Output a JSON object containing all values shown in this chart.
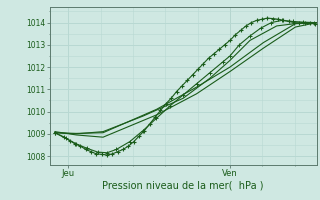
{
  "bg_color": "#cfe8e2",
  "grid_color": "#b8d8d2",
  "line_color": "#1a5c1a",
  "marker_color": "#1a5c1a",
  "axis_color": "#5c7a6e",
  "text_color": "#1a5c1a",
  "xlabel": "Pression niveau de la mer(  hPa )",
  "yticks": [
    1008,
    1009,
    1010,
    1011,
    1012,
    1013,
    1014
  ],
  "xtick_labels": [
    "Jeu",
    "Ven"
  ],
  "xtick_positions": [
    0.07,
    0.675
  ],
  "vline_x": 0.675,
  "xlim": [
    0.0,
    1.0
  ],
  "ylim": [
    1007.6,
    1014.7
  ],
  "series": [
    [
      0.02,
      1009.05,
      0.055,
      1008.85,
      0.075,
      1008.7,
      0.095,
      1008.55,
      0.115,
      1008.45,
      0.135,
      1008.3,
      0.155,
      1008.2,
      0.175,
      1008.1,
      0.195,
      1008.08,
      0.215,
      1008.05,
      0.235,
      1008.1,
      0.255,
      1008.2,
      0.275,
      1008.3,
      0.295,
      1008.45,
      0.315,
      1008.65,
      0.335,
      1008.9,
      0.355,
      1009.15,
      0.375,
      1009.45,
      0.395,
      1009.75,
      0.415,
      1010.05,
      0.435,
      1010.35,
      0.455,
      1010.6,
      0.475,
      1010.9,
      0.495,
      1011.15,
      0.515,
      1011.4,
      0.535,
      1011.65,
      0.555,
      1011.9,
      0.575,
      1012.15,
      0.595,
      1012.4,
      0.615,
      1012.6,
      0.635,
      1012.8,
      0.655,
      1013.0,
      0.675,
      1013.2,
      0.695,
      1013.45,
      0.715,
      1013.65,
      0.735,
      1013.85,
      0.755,
      1014.0,
      0.775,
      1014.1,
      0.795,
      1014.15,
      0.815,
      1014.2,
      0.835,
      1014.18,
      0.855,
      1014.15,
      0.875,
      1014.1,
      0.895,
      1014.05,
      0.915,
      1014.0,
      0.935,
      1013.98,
      0.955,
      1013.97,
      0.975,
      1013.96,
      0.995,
      1013.95
    ],
    [
      0.02,
      1009.05,
      0.06,
      1008.8,
      0.1,
      1008.55,
      0.14,
      1008.35,
      0.18,
      1008.18,
      0.215,
      1008.15,
      0.25,
      1008.3,
      0.3,
      1008.65,
      0.35,
      1009.15,
      0.4,
      1009.7,
      0.45,
      1010.25,
      0.5,
      1010.75,
      0.55,
      1011.25,
      0.6,
      1011.75,
      0.65,
      1012.25,
      0.675,
      1012.5,
      0.71,
      1013.0,
      0.75,
      1013.4,
      0.79,
      1013.75,
      0.83,
      1014.0,
      0.87,
      1014.1,
      0.91,
      1014.05,
      0.95,
      1014.02,
      0.99,
      1014.0
    ],
    [
      0.02,
      1009.05,
      0.1,
      1009.0,
      0.2,
      1009.1,
      0.35,
      1009.8,
      0.5,
      1010.6,
      0.6,
      1011.5,
      0.675,
      1012.3,
      0.75,
      1013.2,
      0.85,
      1013.85,
      0.95,
      1014.0,
      1.0,
      1014.0
    ],
    [
      0.02,
      1009.05,
      0.1,
      1009.02,
      0.2,
      1009.05,
      0.4,
      1010.1,
      0.55,
      1011.1,
      0.675,
      1012.0,
      0.8,
      1013.1,
      0.92,
      1013.95,
      1.0,
      1014.0
    ],
    [
      0.02,
      1009.1,
      0.1,
      1008.95,
      0.2,
      1008.85,
      0.4,
      1009.85,
      0.55,
      1010.8,
      0.675,
      1011.8,
      0.8,
      1012.85,
      0.92,
      1013.8,
      1.0,
      1014.0
    ]
  ],
  "marker_series": 0,
  "marker_every": 1
}
